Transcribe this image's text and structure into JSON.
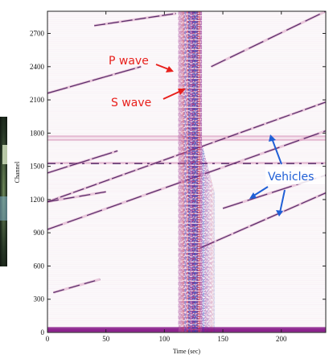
{
  "chart_data": {
    "type": "heatmap",
    "xlabel": "Time (sec)",
    "ylabel": "Channel",
    "xlim": [
      0,
      238
    ],
    "ylim": [
      0,
      2900
    ],
    "x_ticks": [
      "0",
      "50",
      "100",
      "150",
      "200"
    ],
    "x_tick_values": [
      0,
      50,
      100,
      150,
      200
    ],
    "y_ticks": [
      "0",
      "300",
      "600",
      "900",
      "1200",
      "1500",
      "1800",
      "2100",
      "2400",
      "2700"
    ],
    "y_tick_values": [
      0,
      300,
      600,
      900,
      1200,
      1500,
      1800,
      2100,
      2400,
      2700
    ],
    "earthquake_window": {
      "t_start": 112,
      "t_end": 132,
      "peak_t": 125
    },
    "vehicle_tracks": [
      {
        "t0": 0,
        "ch0": 1180,
        "t1": 238,
        "ch1": 2080
      },
      {
        "t0": 0,
        "ch0": 930,
        "t1": 238,
        "ch1": 1820
      },
      {
        "t0": 0,
        "ch0": 1440,
        "t1": 60,
        "ch1": 1640
      },
      {
        "t0": 5,
        "ch0": 360,
        "t1": 45,
        "ch1": 480
      },
      {
        "t0": 130,
        "ch0": 760,
        "t1": 238,
        "ch1": 1260
      },
      {
        "t0": 150,
        "ch0": 1120,
        "t1": 238,
        "ch1": 1420
      },
      {
        "t0": 40,
        "ch0": 2770,
        "t1": 110,
        "ch1": 2880
      },
      {
        "t0": 140,
        "ch0": 2400,
        "t1": 238,
        "ch1": 2900
      },
      {
        "t0": 0,
        "ch0": 2160,
        "t1": 80,
        "ch1": 2400
      },
      {
        "t0": 0,
        "ch0": 1180,
        "t1": 50,
        "ch1": 1270
      }
    ],
    "noisy_channels": [
      1530,
      1740,
      1770,
      30,
      10
    ],
    "annotations": [
      {
        "text": "P wave",
        "color": "#e8201c",
        "x": 105,
        "y": 2440
      },
      {
        "text": "S wave",
        "color": "#e8201c",
        "x": 107,
        "y": 2230
      },
      {
        "text": "Vehicles",
        "color": "#1f5fd6",
        "x": 185,
        "y": 1500
      }
    ],
    "colors": {
      "trace_dark": "#3b0b52",
      "trace_mid": "#8a1f8c",
      "trace_light": "#d58fb8",
      "red_speckle": "#c81e2a",
      "blue_speckle": "#2b3fb8",
      "p_s_label": "#e8201c",
      "vehicle_label": "#1f5fd6"
    }
  }
}
